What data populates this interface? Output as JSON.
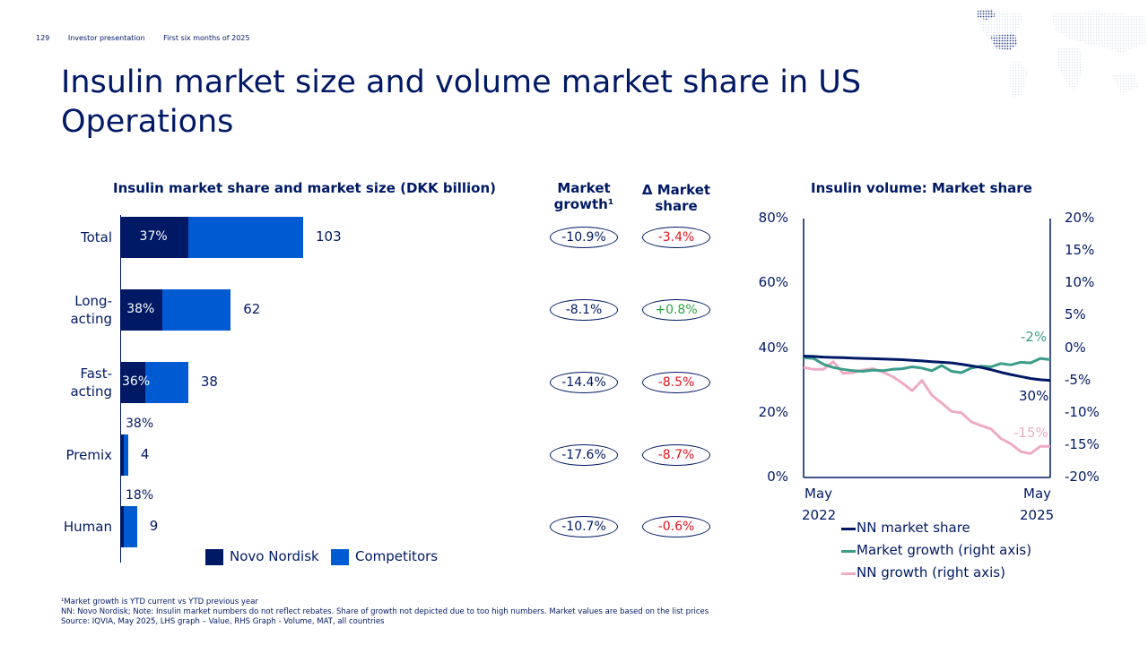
{
  "header": {
    "page": "129",
    "deck": "Investor presentation",
    "period": "First six months of 2025"
  },
  "title": "Insulin market size and volume market share in US Operations",
  "left_chart_title": "Insulin market share and market size (DKK billion)",
  "col_growth": "Market growth¹",
  "col_share": "Δ Market share",
  "right_chart_title": "Insulin volume: Market share",
  "colors": {
    "navy": "#001965",
    "blue": "#005ad2",
    "teal": "#3b9c8a",
    "pink": "#eeaac6",
    "red": "#e6141e",
    "green": "#2aa43e"
  },
  "chart_data": [
    {
      "type": "bar",
      "stacked": true,
      "orientation": "horizontal",
      "title": "Insulin market share and market size (DKK billion)",
      "categories": [
        "Total",
        "Long-acting",
        "Fast-acting",
        "Premix",
        "Human"
      ],
      "category_labels": [
        [
          "Total"
        ],
        [
          "Long-",
          "acting"
        ],
        [
          "Fast-",
          "acting"
        ],
        [
          "Premix"
        ],
        [
          "Human"
        ]
      ],
      "market_size": [
        103,
        62,
        38,
        4,
        9
      ],
      "nn_share_labels": [
        "37%",
        "38%",
        "36%",
        "38%",
        "18%"
      ],
      "nn_share": [
        0.37,
        0.38,
        0.36,
        0.38,
        0.18
      ],
      "series": [
        {
          "name": "Novo Nordisk"
        },
        {
          "name": "Competitors"
        }
      ],
      "market_growth": [
        "-10.9%",
        "-8.1%",
        "-14.4%",
        "-17.6%",
        "-10.7%"
      ],
      "delta_share": [
        "-3.4%",
        "+0.8%",
        "-8.5%",
        "-8.7%",
        "-0.6%"
      ],
      "legend_position": "bottom"
    },
    {
      "type": "line",
      "title": "Insulin volume: Market share",
      "x_start": "May 2022",
      "x_end": "May 2025",
      "x_tick_labels": [
        "May 2022",
        "May 2025"
      ],
      "ylim_left": [
        0,
        80
      ],
      "y_ticks_left": [
        "0%",
        "20%",
        "40%",
        "60%",
        "80%"
      ],
      "ylim_right": [
        -20,
        20
      ],
      "y_ticks_right": [
        "-20%",
        "-15%",
        "-10%",
        "-5%",
        "0%",
        "5%",
        "10%",
        "15%",
        "20%"
      ],
      "series": [
        {
          "name": "NN market share",
          "axis": "left",
          "color": "#001965",
          "end_label": "30%",
          "values": [
            37.5,
            37.4,
            37.2,
            37.1,
            37.0,
            36.9,
            36.8,
            36.7,
            36.6,
            36.5,
            36.4,
            36.2,
            36.0,
            35.8,
            35.6,
            35.4,
            35.0,
            34.5,
            34.0,
            33.3,
            32.5,
            31.8,
            31.2,
            30.6,
            30.2,
            30.0
          ]
        },
        {
          "name": "Market growth (right axis)",
          "axis": "right",
          "color": "#3b9c8a",
          "end_label": "-2%",
          "values": [
            -1.5,
            -1.6,
            -2.5,
            -3.0,
            -3.3,
            -3.5,
            -3.6,
            -3.4,
            -3.5,
            -3.3,
            -3.2,
            -2.9,
            -3.1,
            -3.5,
            -2.7,
            -3.6,
            -3.8,
            -3.1,
            -2.8,
            -2.9,
            -2.4,
            -2.6,
            -2.2,
            -2.3,
            -1.6,
            -1.8
          ]
        },
        {
          "name": "NN growth (right axis)",
          "axis": "right",
          "color": "#eeaac6",
          "end_label": "-15%",
          "values": [
            -3.0,
            -3.3,
            -3.3,
            -2.1,
            -3.9,
            -3.8,
            -3.4,
            -3.2,
            -3.7,
            -4.4,
            -5.4,
            -6.6,
            -5.0,
            -7.3,
            -8.5,
            -9.8,
            -10.0,
            -11.4,
            -12.0,
            -12.5,
            -14.0,
            -14.8,
            -16.0,
            -16.3,
            -15.2,
            -15.2
          ]
        }
      ],
      "legend_position": "bottom"
    }
  ],
  "footnotes": [
    "¹Market growth is YTD current vs YTD previous year",
    "NN: Novo Nordisk; Note: Insulin market numbers do not reflect rebates. Share of growth not depicted due to too high numbers. Market values are based on the list prices",
    "Source: IQVIA, May 2025, LHS graph – Value, RHS Graph - Volume, MAT, all countries"
  ]
}
